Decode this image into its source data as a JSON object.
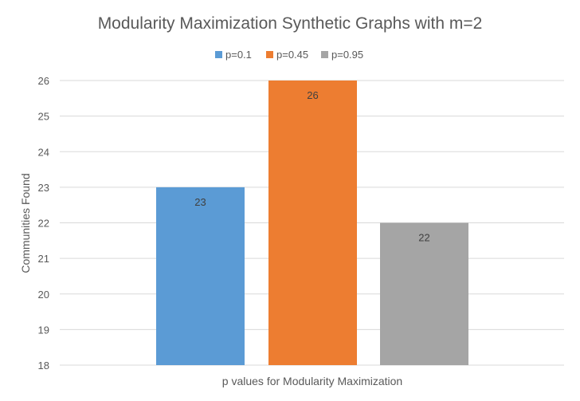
{
  "chart_data": {
    "type": "bar",
    "title": "Modularity Maximization Synthetic Graphs with m=2",
    "xlabel": "p values for Modularity Maximization",
    "ylabel": "Communities Found",
    "categories": [
      ""
    ],
    "series": [
      {
        "name": "p=0.1",
        "values": [
          23
        ],
        "color": "#5B9BD5"
      },
      {
        "name": "p=0.45",
        "values": [
          26
        ],
        "color": "#ED7D31"
      },
      {
        "name": "p=0.95",
        "values": [
          22
        ],
        "color": "#A5A5A5"
      }
    ],
    "ylim": [
      18,
      26
    ],
    "yticks": [
      "18",
      "19",
      "20",
      "21",
      "22",
      "23",
      "24",
      "25",
      "26"
    ],
    "data_labels": [
      "23",
      "26",
      "22"
    ],
    "grid": true,
    "legend": "top",
    "colors": {
      "grid": "#D9D9D9",
      "axis_text": "#595959",
      "label_text": "#404040"
    }
  }
}
